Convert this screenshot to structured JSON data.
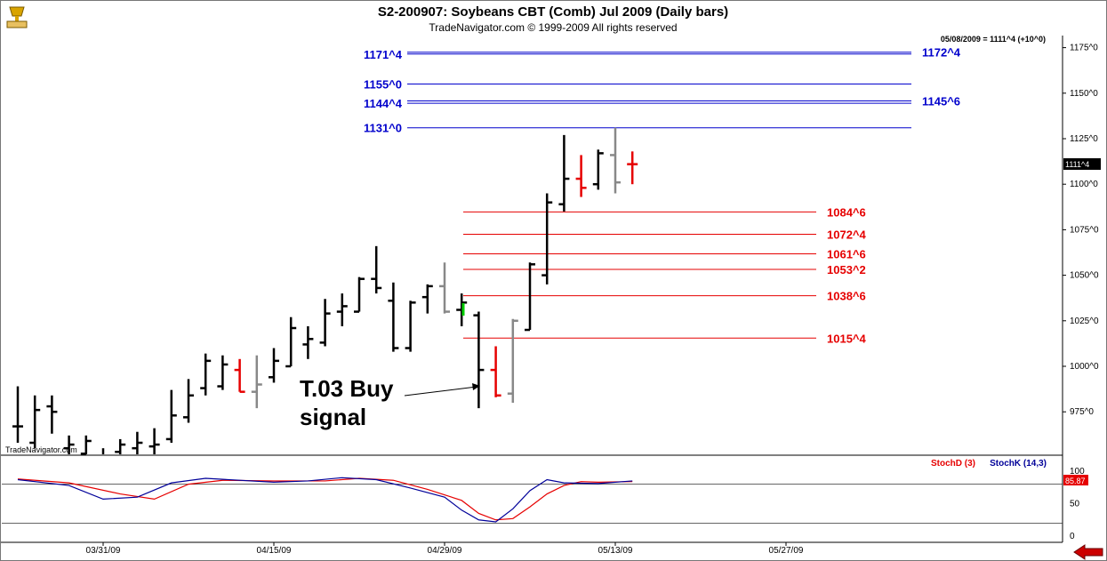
{
  "header": {
    "title": "S2-200907:  Soybeans CBT (Comb) Jul 2009  (Daily bars)",
    "copyright": "TradeNavigator.com © 1999-2009 All rights reserved",
    "last_info": "05/08/2009 = 1111^4 (+10^0)",
    "watermark": "TradeNavigator.com",
    "logo_icon": "trophy-icon"
  },
  "annotation": {
    "line1": "T.03 Buy",
    "line2": "signal"
  },
  "price_axis": {
    "ticks": [
      {
        "value": 975,
        "label": "975^0"
      },
      {
        "value": 1000,
        "label": "1000^0"
      },
      {
        "value": 1025,
        "label": "1025^0"
      },
      {
        "value": 1050,
        "label": "1050^0"
      },
      {
        "value": 1075,
        "label": "1075^0"
      },
      {
        "value": 1100,
        "label": "1100^0"
      },
      {
        "value": 1125,
        "label": "1125^0"
      },
      {
        "value": 1150,
        "label": "1150^0"
      },
      {
        "value": 1175,
        "label": "1175^0"
      }
    ],
    "current_label": "1111^4",
    "current_value": 1111.5
  },
  "date_axis": {
    "labels": [
      {
        "bar": 5,
        "label": "03/31/09"
      },
      {
        "bar": 15,
        "label": "04/15/09"
      },
      {
        "bar": 25,
        "label": "04/29/09"
      },
      {
        "bar": 35,
        "label": "05/13/09"
      },
      {
        "bar": 45,
        "label": "05/27/09"
      }
    ]
  },
  "stoch_axis": {
    "ticks": [
      {
        "value": 0,
        "label": "0"
      },
      {
        "value": 50,
        "label": "50"
      },
      {
        "value": 100,
        "label": "100"
      }
    ],
    "current_label": "85.87",
    "current_value": 85.87,
    "legend_d": "StochD (3)",
    "legend_k": "StochK (14,3)"
  },
  "colors": {
    "background": "#ffffff",
    "bar_up": "#000000",
    "bar_down": "#e60000",
    "bar_neutral": "#888888",
    "level_blue": "#0000cc",
    "level_red": "#e60000",
    "stoch_d": "#e60000",
    "stoch_k": "#000099",
    "signal": "#00cc00",
    "nav_arrow": "#cc0000"
  },
  "chart_data": [
    {
      "type": "ohlc",
      "title": "S2-200907:  Soybeans CBT (Comb) Jul 2009  (Daily bars)",
      "ylim": [
        960,
        1185
      ],
      "bars": [
        {
          "i": 0,
          "o": 967,
          "h": 989,
          "l": 958,
          "c": 967,
          "col": "black"
        },
        {
          "i": 1,
          "o": 958,
          "h": 984,
          "l": 955,
          "c": 976,
          "col": "black"
        },
        {
          "i": 2,
          "o": 978,
          "h": 984,
          "l": 963,
          "c": 975,
          "col": "black"
        },
        {
          "i": 3,
          "o": 955,
          "h": 962,
          "l": 950,
          "c": 957,
          "col": "black"
        },
        {
          "i": 4,
          "o": 952,
          "h": 962,
          "l": 948,
          "c": 959,
          "col": "black"
        },
        {
          "i": 5,
          "o": 949,
          "h": 955,
          "l": 944,
          "c": 950,
          "col": "black"
        },
        {
          "i": 6,
          "o": 953,
          "h": 960,
          "l": 950,
          "c": 957,
          "col": "black"
        },
        {
          "i": 7,
          "o": 955,
          "h": 964,
          "l": 950,
          "c": 958,
          "col": "black"
        },
        {
          "i": 8,
          "o": 956,
          "h": 966,
          "l": 950,
          "c": 957,
          "col": "black"
        },
        {
          "i": 9,
          "o": 960,
          "h": 987,
          "l": 958,
          "c": 973,
          "col": "black"
        },
        {
          "i": 10,
          "o": 972,
          "h": 993,
          "l": 969,
          "c": 984,
          "col": "black"
        },
        {
          "i": 11,
          "o": 988,
          "h": 1007,
          "l": 984,
          "c": 1003,
          "col": "black"
        },
        {
          "i": 12,
          "o": 989,
          "h": 1006,
          "l": 987,
          "c": 1001,
          "col": "black"
        },
        {
          "i": 13,
          "o": 998,
          "h": 1004,
          "l": 986,
          "c": 986,
          "col": "red"
        },
        {
          "i": 14,
          "o": 986,
          "h": 1006,
          "l": 977,
          "c": 990,
          "col": "gray"
        },
        {
          "i": 15,
          "o": 994,
          "h": 1010,
          "l": 991,
          "c": 1003,
          "col": "black"
        },
        {
          "i": 16,
          "o": 1000,
          "h": 1027,
          "l": 1000,
          "c": 1021,
          "col": "black"
        },
        {
          "i": 17,
          "o": 1012,
          "h": 1022,
          "l": 1004,
          "c": 1015,
          "col": "black"
        },
        {
          "i": 18,
          "o": 1013,
          "h": 1037,
          "l": 1011,
          "c": 1029,
          "col": "black"
        },
        {
          "i": 19,
          "o": 1030,
          "h": 1040,
          "l": 1022,
          "c": 1033,
          "col": "black"
        },
        {
          "i": 20,
          "o": 1030,
          "h": 1049,
          "l": 1030,
          "c": 1048,
          "col": "black"
        },
        {
          "i": 21,
          "o": 1048,
          "h": 1066,
          "l": 1040,
          "c": 1043,
          "col": "black"
        },
        {
          "i": 22,
          "o": 1036,
          "h": 1046,
          "l": 1008,
          "c": 1010,
          "col": "black"
        },
        {
          "i": 23,
          "o": 1010,
          "h": 1036,
          "l": 1008,
          "c": 1035,
          "col": "black"
        },
        {
          "i": 24,
          "o": 1038,
          "h": 1045,
          "l": 1029,
          "c": 1044,
          "col": "black"
        },
        {
          "i": 25,
          "o": 1044,
          "h": 1057,
          "l": 1029,
          "c": 1030,
          "col": "gray"
        },
        {
          "i": 26,
          "o": 1031,
          "h": 1040,
          "l": 1022,
          "c": 1035,
          "col": "black"
        },
        {
          "i": 27,
          "o": 1028,
          "h": 1030,
          "l": 977,
          "c": 998,
          "col": "black"
        },
        {
          "i": 28,
          "o": 998,
          "h": 1011,
          "l": 983,
          "c": 984,
          "col": "red"
        },
        {
          "i": 29,
          "o": 985,
          "h": 1026,
          "l": 980,
          "c": 1025,
          "col": "gray"
        },
        {
          "i": 30,
          "o": 1020,
          "h": 1057,
          "l": 1020,
          "c": 1056,
          "col": "black"
        },
        {
          "i": 31,
          "o": 1050,
          "h": 1095,
          "l": 1045,
          "c": 1090,
          "col": "black"
        },
        {
          "i": 32,
          "o": 1089,
          "h": 1127,
          "l": 1085,
          "c": 1103,
          "col": "black"
        },
        {
          "i": 33,
          "o": 1103,
          "h": 1116,
          "l": 1093,
          "c": 1098,
          "col": "red"
        },
        {
          "i": 34,
          "o": 1100,
          "h": 1119,
          "l": 1097,
          "c": 1117,
          "col": "black"
        },
        {
          "i": 35,
          "o": 1116,
          "h": 1131,
          "l": 1095,
          "c": 1101,
          "col": "gray"
        },
        {
          "i": 36,
          "o": 1111,
          "h": 1118,
          "l": 1100,
          "c": 1111,
          "col": "red"
        }
      ],
      "levels": [
        {
          "value": 1172.5,
          "label": "1172^4",
          "color": "blue",
          "side": "right"
        },
        {
          "value": 1171.5,
          "label": "1171^4",
          "color": "blue",
          "side": "left"
        },
        {
          "value": 1155,
          "label": "1155^0",
          "color": "blue",
          "side": "left"
        },
        {
          "value": 1145.75,
          "label": "1145^6",
          "color": "blue",
          "side": "right"
        },
        {
          "value": 1144.5,
          "label": "1144^4",
          "color": "blue",
          "side": "left"
        },
        {
          "value": 1131,
          "label": "1131^0",
          "color": "blue",
          "side": "left"
        },
        {
          "value": 1084.75,
          "label": "1084^6",
          "color": "red",
          "side": "right"
        },
        {
          "value": 1072.5,
          "label": "1072^4",
          "color": "red",
          "side": "right"
        },
        {
          "value": 1061.75,
          "label": "1061^6",
          "color": "red",
          "side": "right"
        },
        {
          "value": 1053.25,
          "label": "1053^2",
          "color": "red",
          "side": "right"
        },
        {
          "value": 1038.75,
          "label": "1038^6",
          "color": "red",
          "side": "right"
        },
        {
          "value": 1015.5,
          "label": "1015^4",
          "color": "red",
          "side": "right"
        }
      ]
    },
    {
      "type": "line",
      "title": "",
      "ylim": [
        -5,
        115
      ],
      "series": [
        {
          "name": "StochD (3)",
          "color": "#e60000",
          "values": [
            [
              0,
              88
            ],
            [
              3,
              82
            ],
            [
              6,
              65
            ],
            [
              8,
              57
            ],
            [
              10,
              80
            ],
            [
              12,
              86
            ],
            [
              15,
              85
            ],
            [
              18,
              85
            ],
            [
              20,
              89
            ],
            [
              22,
              86
            ],
            [
              24,
              72
            ],
            [
              26,
              55
            ],
            [
              27,
              35
            ],
            [
              28,
              25
            ],
            [
              29,
              27
            ],
            [
              30,
              45
            ],
            [
              31,
              65
            ],
            [
              32,
              78
            ],
            [
              33,
              84
            ],
            [
              34,
              83
            ],
            [
              36,
              84
            ]
          ]
        },
        {
          "name": "StochK (14,3)",
          "color": "#000099",
          "values": [
            [
              0,
              87
            ],
            [
              3,
              78
            ],
            [
              5,
              57
            ],
            [
              7,
              60
            ],
            [
              9,
              82
            ],
            [
              11,
              89
            ],
            [
              15,
              83
            ],
            [
              17,
              85
            ],
            [
              19,
              90
            ],
            [
              21,
              87
            ],
            [
              23,
              74
            ],
            [
              25,
              60
            ],
            [
              26,
              40
            ],
            [
              27,
              25
            ],
            [
              28,
              22
            ],
            [
              29,
              42
            ],
            [
              30,
              70
            ],
            [
              31,
              87
            ],
            [
              32,
              82
            ],
            [
              34,
              81
            ],
            [
              36,
              85
            ]
          ]
        }
      ],
      "current_value": 85.87
    }
  ]
}
